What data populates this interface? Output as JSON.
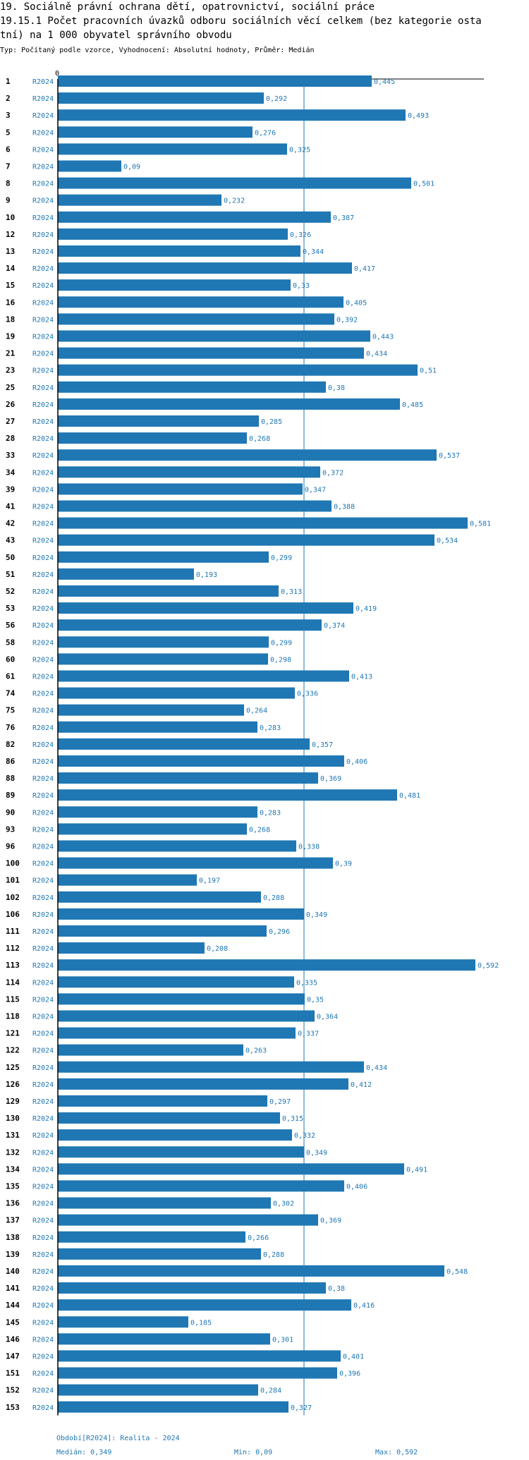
{
  "header": {
    "line1": "19. Sociálně právní ochrana dětí, opatrovnictví, sociální práce",
    "line2": "19.15.1 Počet pracovních úvazků odboru sociálních věcí celkem (bez kategorie osta",
    "line3": "tní) na 1 000 obyvatel správního obvodu",
    "meta": "Typ: Počítaný podle vzorce, Vyhodnocení: Absolutní hodnoty, Průměr: Medián"
  },
  "footer": {
    "period": "Období[R2024]: Realita - 2024",
    "median": "Medián: 0,349",
    "min": "Min: 0,09",
    "max": "Max: 0,592"
  },
  "colors": {
    "bar": "#1f77b4",
    "median_line": "#1f77b4",
    "axis": "#000000"
  },
  "chart_data": {
    "type": "bar",
    "orientation": "horizontal",
    "series_label": "R2024",
    "x_tick_label": "0",
    "xlim": [
      0,
      0.592
    ],
    "median": 0.349,
    "median_label": "0,349",
    "categories": [
      "1",
      "2",
      "3",
      "5",
      "6",
      "7",
      "8",
      "9",
      "10",
      "12",
      "13",
      "14",
      "15",
      "16",
      "18",
      "19",
      "21",
      "23",
      "25",
      "26",
      "27",
      "28",
      "33",
      "34",
      "39",
      "41",
      "42",
      "43",
      "50",
      "51",
      "52",
      "53",
      "56",
      "58",
      "60",
      "61",
      "74",
      "75",
      "76",
      "82",
      "86",
      "88",
      "89",
      "90",
      "93",
      "96",
      "100",
      "101",
      "102",
      "106",
      "111",
      "112",
      "113",
      "114",
      "115",
      "118",
      "121",
      "122",
      "125",
      "126",
      "129",
      "130",
      "131",
      "132",
      "134",
      "135",
      "136",
      "137",
      "138",
      "139",
      "140",
      "141",
      "144",
      "145",
      "146",
      "147",
      "151",
      "152",
      "153"
    ],
    "values": [
      0.445,
      0.292,
      0.493,
      0.276,
      0.325,
      0.09,
      0.501,
      0.232,
      0.387,
      0.326,
      0.344,
      0.417,
      0.33,
      0.405,
      0.392,
      0.443,
      0.434,
      0.51,
      0.38,
      0.485,
      0.285,
      0.268,
      0.537,
      0.372,
      0.347,
      0.388,
      0.581,
      0.534,
      0.299,
      0.193,
      0.313,
      0.419,
      0.374,
      0.299,
      0.298,
      0.413,
      0.336,
      0.264,
      0.283,
      0.357,
      0.406,
      0.369,
      0.481,
      0.283,
      0.268,
      0.338,
      0.39,
      0.197,
      0.288,
      0.349,
      0.296,
      0.208,
      0.592,
      0.335,
      0.35,
      0.364,
      0.337,
      0.263,
      0.434,
      0.412,
      0.297,
      0.315,
      0.332,
      0.349,
      0.491,
      0.406,
      0.302,
      0.369,
      0.266,
      0.288,
      0.548,
      0.38,
      0.416,
      0.185,
      0.301,
      0.401,
      0.396,
      0.284,
      0.327
    ],
    "value_labels": [
      "0,445",
      "0,292",
      "0,493",
      "0,276",
      "0,325",
      "0,09",
      "0,501",
      "0,232",
      "0,387",
      "0,326",
      "0,344",
      "0,417",
      "0,33",
      "0,405",
      "0,392",
      "0,443",
      "0,434",
      "0,51",
      "0,38",
      "0,485",
      "0,285",
      "0,268",
      "0,537",
      "0,372",
      "0,347",
      "0,388",
      "0,581",
      "0,534",
      "0,299",
      "0,193",
      "0,313",
      "0,419",
      "0,374",
      "0,299",
      "0,298",
      "0,413",
      "0,336",
      "0,264",
      "0,283",
      "0,357",
      "0,406",
      "0,369",
      "0,481",
      "0,283",
      "0,268",
      "0,338",
      "0,39",
      "0,197",
      "0,288",
      "0,349",
      "0,296",
      "0,208",
      "0,592",
      "0,335",
      "0,35",
      "0,364",
      "0,337",
      "0,263",
      "0,434",
      "0,412",
      "0,297",
      "0,315",
      "0,332",
      "0,349",
      "0,491",
      "0,406",
      "0,302",
      "0,369",
      "0,266",
      "0,288",
      "0,548",
      "0,38",
      "0,416",
      "0,185",
      "0,301",
      "0,401",
      "0,396",
      "0,284",
      "0,327"
    ]
  }
}
